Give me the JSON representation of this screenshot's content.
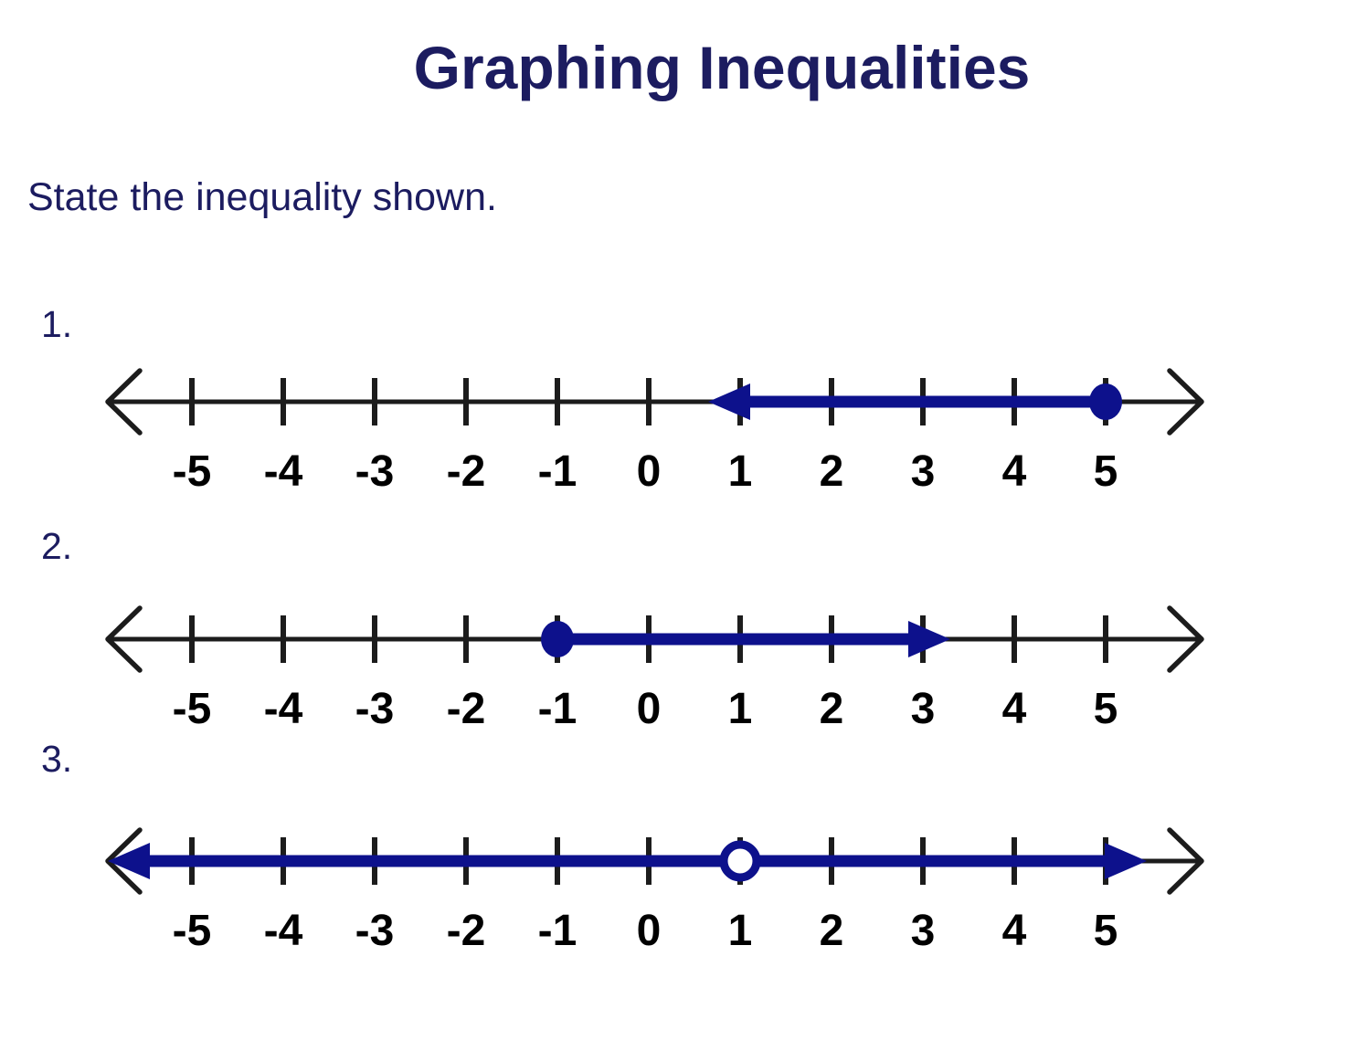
{
  "page": {
    "title": "Graphing Inequalities",
    "instruction": "State the inequality shown."
  },
  "colors": {
    "heading_navy": "#1c1c60",
    "ray_blue": "#0d118c",
    "axis_black": "#1c1c1c",
    "tick_label_black": "#000000",
    "open_circle_fill": "#ffffff"
  },
  "number_lines": [
    {
      "item_label": "1.",
      "tick_values": [
        -5,
        -4,
        -3,
        -2,
        -1,
        0,
        1,
        2,
        3,
        4,
        5
      ],
      "tick_labels": [
        "-5",
        "-4",
        "-3",
        "-2",
        "-1",
        "0",
        "1",
        "2",
        "3",
        "4",
        "5"
      ],
      "marker": {
        "type": "closed-dot",
        "value": 5
      },
      "ray": {
        "start_value": 0.65,
        "end_value": 5,
        "arrow_at_start": true,
        "arrow_at_end": false,
        "direction": "left"
      }
    },
    {
      "item_label": "2.",
      "tick_values": [
        -5,
        -4,
        -3,
        -2,
        -1,
        0,
        1,
        2,
        3,
        4,
        5
      ],
      "tick_labels": [
        "-5",
        "-4",
        "-3",
        "-2",
        "-1",
        "0",
        "1",
        "2",
        "3",
        "4",
        "5"
      ],
      "marker": {
        "type": "closed-dot",
        "value": -1
      },
      "ray": {
        "start_value": -1,
        "end_value": 3.3,
        "arrow_at_start": false,
        "arrow_at_end": true,
        "direction": "right"
      }
    },
    {
      "item_label": "3.",
      "tick_values": [
        -5,
        -4,
        -3,
        -2,
        -1,
        0,
        1,
        2,
        3,
        4,
        5
      ],
      "tick_labels": [
        "-5",
        "-4",
        "-3",
        "-2",
        "-1",
        "0",
        "1",
        "2",
        "3",
        "4",
        "5"
      ],
      "marker": {
        "type": "open-circle",
        "value": 1
      },
      "ray": {
        "start_value": -5.92,
        "end_value": 5.45,
        "arrow_at_start": true,
        "arrow_at_end": true,
        "direction": "both"
      }
    }
  ]
}
